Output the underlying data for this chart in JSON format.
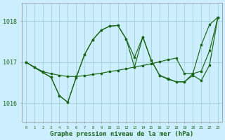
{
  "title": "Graphe pression niveau de la mer (hPa)",
  "bg_color": "#cceeff",
  "grid_color": "#99cccc",
  "line_color": "#1a6618",
  "text_color": "#1a6618",
  "yticks": [
    1016,
    1017,
    1018
  ],
  "ylim": [
    1015.55,
    1018.45
  ],
  "xlim": [
    -0.5,
    23.5
  ],
  "xticks": [
    0,
    1,
    2,
    3,
    4,
    5,
    6,
    7,
    8,
    9,
    10,
    11,
    12,
    13,
    14,
    15,
    16,
    17,
    18,
    19,
    20,
    21,
    22,
    23
  ],
  "series_trend": [
    1017.0,
    1016.88,
    1016.77,
    1016.72,
    1016.68,
    1016.65,
    1016.65,
    1016.67,
    1016.7,
    1016.73,
    1016.77,
    1016.8,
    1016.84,
    1016.88,
    1016.92,
    1016.96,
    1017.01,
    1017.06,
    1017.1,
    1016.72,
    1016.72,
    1016.78,
    1017.28,
    1018.1
  ],
  "series_jagged1": [
    1017.0,
    1016.87,
    1016.75,
    1016.63,
    1016.18,
    1016.02,
    1016.62,
    1017.18,
    1017.55,
    1017.78,
    1017.88,
    1017.9,
    1017.57,
    1017.12,
    1017.62,
    1017.05,
    1016.68,
    1016.58,
    1016.52,
    1016.52,
    1016.68,
    1016.55,
    1016.93,
    1018.1
  ],
  "series_jagged2": [
    1017.0,
    1016.87,
    1016.75,
    1016.63,
    1016.18,
    1016.02,
    1016.62,
    1017.18,
    1017.55,
    1017.78,
    1017.88,
    1017.9,
    1017.57,
    1016.88,
    1017.62,
    1017.05,
    1016.68,
    1016.6,
    1016.52,
    1016.52,
    1016.72,
    1017.42,
    1017.92,
    1018.1
  ]
}
